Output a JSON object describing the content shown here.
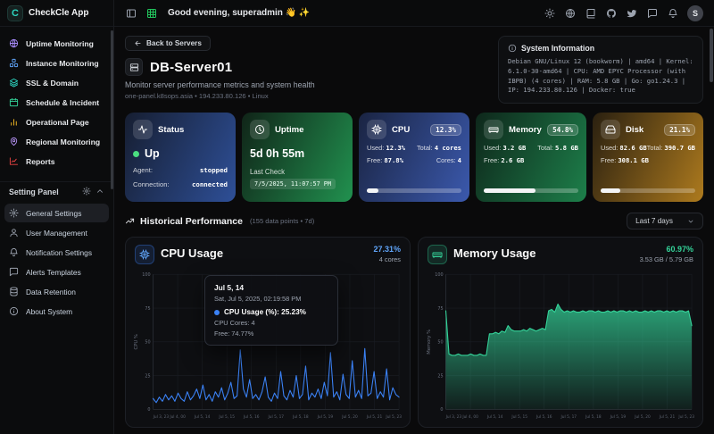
{
  "app": {
    "name": "CheckCle App",
    "logo_letter": "C"
  },
  "colors": {
    "brand": "#2dd4bf",
    "status_up": "#4ade80",
    "cpu_accent": "#60a5fa",
    "memory_accent": "#34d399",
    "disk_accent": "#f59e0b",
    "cpu_line": "#3b82f6"
  },
  "header": {
    "left_icons": [
      "panel-left-icon",
      "grid-icon"
    ],
    "greeting": "Good evening, superadmin 👋 ✨",
    "right_icons": [
      "sun-icon",
      "globe-icon",
      "book-icon",
      "github-icon",
      "twitter-icon",
      "message-icon",
      "bell-icon"
    ],
    "avatar_letter": "S"
  },
  "sidebar": {
    "items": [
      {
        "label": "Uptime Monitoring",
        "icon": "globe-icon"
      },
      {
        "label": "Instance Monitoring",
        "icon": "boxes-icon"
      },
      {
        "label": "SSL & Domain",
        "icon": "layers-icon"
      },
      {
        "label": "Schedule & Incident",
        "icon": "calendar-icon"
      },
      {
        "label": "Operational Page",
        "icon": "bar-chart-icon"
      },
      {
        "label": "Regional Monitoring",
        "icon": "map-pin-icon"
      },
      {
        "label": "Reports",
        "icon": "line-chart-icon"
      }
    ],
    "settings_label": "Setting Panel",
    "settings_items": [
      {
        "label": "General Settings",
        "icon": "gear-icon",
        "active": true
      },
      {
        "label": "User Management",
        "icon": "user-icon"
      },
      {
        "label": "Notification Settings",
        "icon": "bell-icon"
      },
      {
        "label": "Alerts Templates",
        "icon": "message-icon"
      },
      {
        "label": "Data Retention",
        "icon": "database-icon"
      },
      {
        "label": "About System",
        "icon": "info-icon"
      }
    ]
  },
  "page": {
    "back_button": "Back to Servers",
    "title": "DB-Server01",
    "subtitle": "Monitor server performance metrics and system health",
    "host_line": "one-panel.k8sops.asia • 194.233.80.126 • Linux",
    "system_info": {
      "title": "System Information",
      "details": "Debian GNU/Linux 12 (bookworm) | amd64 | Kernel: 6.1.0-30-amd64 | CPU: AMD EPYC Processor (with IBPB) (4 cores) | RAM: 5.8 GB | Go: go1.24.3 | IP: 194.233.80.126 | Docker: true"
    }
  },
  "cards": {
    "status": {
      "title": "Status",
      "value": "Up",
      "agent_label": "Agent:",
      "agent_value": "stopped",
      "connection_label": "Connection:",
      "connection_value": "connected"
    },
    "uptime": {
      "title": "Uptime",
      "value": "5d 0h 55m",
      "last_check_label": "Last Check",
      "last_check": "7/5/2025, 11:07:57 PM"
    },
    "cpu": {
      "title": "CPU",
      "badge": "12.3%",
      "used_label": "Used:",
      "used": "12.3%",
      "total_label": "Total:",
      "total": "4 cores",
      "free_label": "Free:",
      "free": "87.8%",
      "cores_label": "Cores:",
      "cores": "4",
      "progress": 12.3
    },
    "memory": {
      "title": "Memory",
      "badge": "54.8%",
      "used_label": "Used:",
      "used": "3.2 GB",
      "total_label": "Total:",
      "total": "5.8 GB",
      "free_label": "Free:",
      "free": "2.6 GB",
      "progress": 54.8
    },
    "disk": {
      "title": "Disk",
      "badge": "21.1%",
      "used_label": "Used:",
      "used": "82.6 GB",
      "total_label": "Total:",
      "total": "390.7 GB",
      "free_label": "Free:",
      "free": "308.1 GB",
      "progress": 21.1
    }
  },
  "historical": {
    "title": "Historical Performance",
    "meta": "(155 data points • 7d)",
    "range_selector": "Last 7 days"
  },
  "chart_data": [
    {
      "type": "line",
      "title": "CPU Usage",
      "header_value": "27.31%",
      "header_sub": "4 cores",
      "ylabel": "CPU %",
      "ylim": [
        0,
        100
      ],
      "yticks": [
        100,
        75,
        50,
        25,
        0
      ],
      "grid": true,
      "legend": "none",
      "color": "#3b82f6",
      "x_ticks": [
        "Jul 3, 23",
        "Jul 4, 00",
        "Jul 5, 14",
        "Jul 5, 15",
        "Jul 5, 16",
        "Jul 5, 17",
        "Jul 5, 18",
        "Jul 5, 19",
        "Jul 5, 20",
        "Jul 5, 21",
        "Jul 5, 23"
      ],
      "values": [
        8,
        5,
        9,
        6,
        11,
        7,
        10,
        6,
        12,
        8,
        6,
        13,
        7,
        10,
        15,
        8,
        18,
        7,
        11,
        6,
        13,
        9,
        16,
        7,
        12,
        20,
        8,
        10,
        44,
        15,
        9,
        22,
        8,
        11,
        7,
        13,
        24,
        9,
        6,
        12,
        8,
        28,
        10,
        7,
        14,
        9,
        25,
        8,
        11,
        32,
        7,
        12,
        9,
        15,
        8,
        20,
        10,
        42,
        9,
        13,
        7,
        26,
        11,
        8,
        36,
        9,
        14,
        8,
        45,
        10,
        12,
        28,
        8,
        13,
        9,
        30,
        7,
        16,
        11,
        9
      ],
      "tooltip": {
        "title": "Jul 5, 14",
        "datetime": "Sat, Jul 5, 2025, 02:19:58 PM",
        "value_line": "CPU Usage (%): 25.23%",
        "cores_line": "CPU Cores: 4",
        "free_line": "Free: 74.77%"
      }
    },
    {
      "type": "area",
      "title": "Memory Usage",
      "header_value": "60.97%",
      "header_sub": "3.53 GB / 5.79 GB",
      "ylabel": "Memory %",
      "ylim": [
        0,
        100
      ],
      "yticks": [
        100,
        75,
        50,
        25,
        0
      ],
      "grid": true,
      "legend": "none",
      "color": "#34d399",
      "x_ticks": [
        "Jul 3, 23",
        "Jul 4, 00",
        "Jul 5, 14",
        "Jul 5, 15",
        "Jul 5, 16",
        "Jul 5, 17",
        "Jul 5, 18",
        "Jul 5, 19",
        "Jul 5, 20",
        "Jul 5, 21",
        "Jul 5, 23"
      ],
      "values": [
        73,
        41,
        40,
        40,
        41,
        40,
        40,
        40,
        41,
        40,
        40,
        41,
        40,
        40,
        56,
        56,
        57,
        56,
        58,
        57,
        62,
        59,
        58,
        58,
        58,
        59,
        58,
        60,
        59,
        58,
        59,
        60,
        59,
        73,
        74,
        72,
        78,
        74,
        72,
        73,
        72,
        73,
        72,
        72,
        73,
        72,
        73,
        73,
        72,
        73,
        72,
        72,
        73,
        72,
        73,
        72,
        73,
        73,
        72,
        73,
        72,
        73,
        72,
        72,
        73,
        72,
        73,
        72,
        73,
        73,
        72,
        73,
        72,
        73,
        72,
        73,
        73,
        72,
        73,
        62
      ]
    }
  ]
}
